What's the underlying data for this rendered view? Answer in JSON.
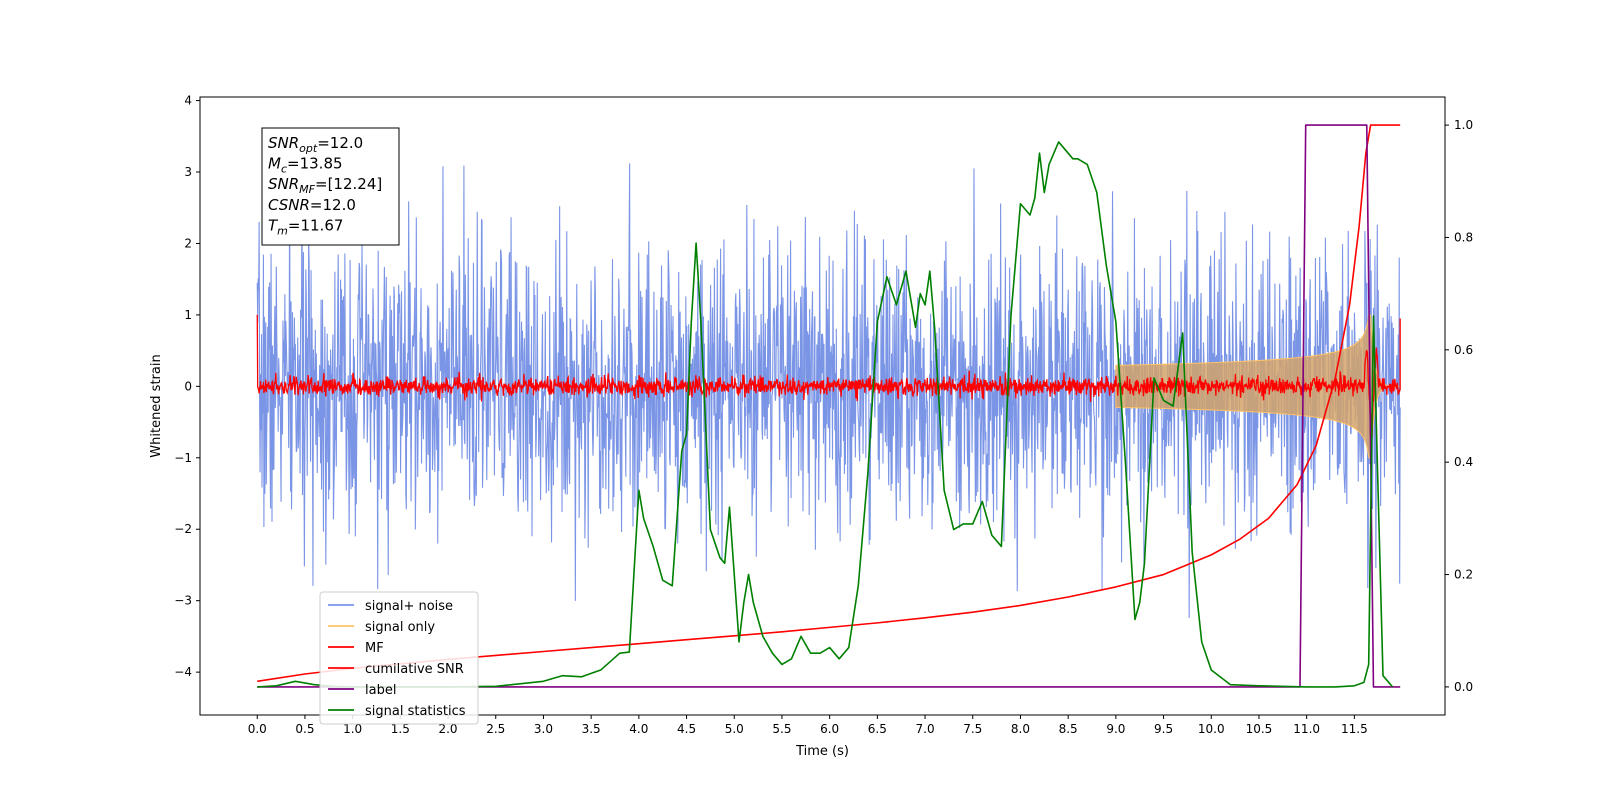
{
  "chart_data": {
    "type": "line",
    "xlabel": "Time (s)",
    "ylabel": "Whitened strain",
    "xlim": [
      -0.6,
      12.45
    ],
    "ylim": [
      -4.6,
      4.05
    ],
    "y2lim": [
      -0.05,
      1.05
    ],
    "x_ticks": [
      "0.0",
      "0.5",
      "1.0",
      "1.5",
      "2.0",
      "2.5",
      "3.0",
      "3.5",
      "4.0",
      "4.5",
      "5.0",
      "5.5",
      "6.0",
      "6.5",
      "7.0",
      "7.5",
      "8.0",
      "8.5",
      "9.0",
      "9.5",
      "10.0",
      "10.5",
      "11.0",
      "11.5"
    ],
    "y_ticks": [
      "4",
      "3",
      "2",
      "1",
      "0",
      "−1",
      "−2",
      "−3",
      "−4"
    ],
    "y2_ticks": [
      "1.0",
      "0.8",
      "0.6",
      "0.4",
      "0.2",
      "0.0"
    ],
    "legend_position": "lower-left",
    "grid": false,
    "info_box": {
      "lines": [
        {
          "sym": "SNR",
          "sub": "opt",
          "value": "=12.0"
        },
        {
          "sym": "M",
          "sub": "c",
          "value": "=13.85"
        },
        {
          "sym": "SNR",
          "sub": "MF",
          "value": "=[12.24]"
        },
        {
          "sym": "CSNR",
          "sub": "",
          "value": "=12.0"
        },
        {
          "sym": "T",
          "sub": "m",
          "value": "=11.67"
        }
      ]
    },
    "series": [
      {
        "name": "signal+ noise",
        "color": "#7b95e6",
        "axis": "left",
        "kind": "noise",
        "amplitude": 1.0,
        "duration": 11.98
      },
      {
        "name": "signal only",
        "color": "#ffc266",
        "axis": "left",
        "kind": "chirp",
        "merger": 11.67,
        "peak": 1.0
      },
      {
        "name": "MF",
        "color": "#ff0000",
        "axis": "left",
        "kind": "mf-noise",
        "amplitude": 0.1
      },
      {
        "name": "cumilative SNR",
        "color": "#ff0000",
        "axis": "right",
        "x": [
          0.0,
          0.5,
          1.0,
          1.5,
          2.0,
          2.5,
          3.0,
          3.5,
          4.0,
          4.5,
          5.0,
          5.5,
          6.0,
          6.5,
          7.0,
          7.5,
          8.0,
          8.5,
          9.0,
          9.5,
          10.0,
          10.3,
          10.6,
          10.9,
          11.1,
          11.3,
          11.45,
          11.55,
          11.62,
          11.67,
          11.7,
          11.98
        ],
        "y": [
          0.01,
          0.023,
          0.033,
          0.041,
          0.049,
          0.056,
          0.063,
          0.07,
          0.077,
          0.084,
          0.091,
          0.098,
          0.106,
          0.114,
          0.123,
          0.133,
          0.145,
          0.16,
          0.178,
          0.2,
          0.235,
          0.263,
          0.3,
          0.36,
          0.43,
          0.55,
          0.68,
          0.82,
          0.95,
          1.0,
          1.0,
          1.0
        ]
      },
      {
        "name": "label",
        "color": "#800080",
        "axis": "right",
        "x": [
          0.0,
          10.93,
          10.99,
          11.63,
          11.7,
          11.98
        ],
        "y": [
          0.0,
          0.0,
          1.0,
          1.0,
          0.0,
          0.0
        ]
      },
      {
        "name": "signal statistics",
        "color": "#008000",
        "axis": "right",
        "x": [
          0.0,
          0.2,
          0.4,
          0.6,
          0.8,
          1.0,
          1.5,
          2.0,
          2.5,
          3.0,
          3.2,
          3.4,
          3.6,
          3.8,
          3.9,
          4.0,
          4.05,
          4.15,
          4.25,
          4.35,
          4.45,
          4.5,
          4.55,
          4.6,
          4.65,
          4.75,
          4.85,
          4.9,
          4.95,
          5.0,
          5.05,
          5.1,
          5.15,
          5.2,
          5.3,
          5.4,
          5.5,
          5.6,
          5.7,
          5.8,
          5.9,
          6.0,
          6.1,
          6.2,
          6.3,
          6.4,
          6.5,
          6.6,
          6.7,
          6.8,
          6.9,
          6.95,
          7.0,
          7.05,
          7.1,
          7.2,
          7.3,
          7.4,
          7.5,
          7.6,
          7.7,
          7.8,
          7.9,
          8.0,
          8.1,
          8.15,
          8.2,
          8.25,
          8.3,
          8.4,
          8.5,
          8.55,
          8.6,
          8.7,
          8.8,
          8.9,
          9.0,
          9.1,
          9.2,
          9.25,
          9.3,
          9.4,
          9.5,
          9.6,
          9.7,
          9.8,
          9.9,
          10.0,
          10.2,
          10.5,
          11.0,
          11.3,
          11.5,
          11.6,
          11.65,
          11.7,
          11.8,
          11.9
        ],
        "y": [
          0.0,
          0.002,
          0.01,
          0.004,
          0.001,
          0.0,
          0.0,
          0.0,
          0.001,
          0.01,
          0.02,
          0.018,
          0.03,
          0.06,
          0.062,
          0.35,
          0.3,
          0.25,
          0.19,
          0.18,
          0.42,
          0.45,
          0.65,
          0.79,
          0.65,
          0.28,
          0.23,
          0.22,
          0.32,
          0.2,
          0.08,
          0.15,
          0.2,
          0.15,
          0.09,
          0.06,
          0.04,
          0.05,
          0.09,
          0.06,
          0.06,
          0.07,
          0.05,
          0.07,
          0.18,
          0.38,
          0.65,
          0.73,
          0.68,
          0.74,
          0.64,
          0.7,
          0.68,
          0.74,
          0.64,
          0.35,
          0.28,
          0.29,
          0.29,
          0.33,
          0.27,
          0.25,
          0.66,
          0.86,
          0.84,
          0.87,
          0.95,
          0.88,
          0.93,
          0.97,
          0.95,
          0.94,
          0.94,
          0.93,
          0.88,
          0.75,
          0.65,
          0.4,
          0.12,
          0.15,
          0.22,
          0.55,
          0.51,
          0.5,
          0.63,
          0.24,
          0.08,
          0.03,
          0.004,
          0.002,
          0.0,
          0.0,
          0.002,
          0.008,
          0.04,
          0.66,
          0.02,
          0.0
        ]
      }
    ]
  }
}
